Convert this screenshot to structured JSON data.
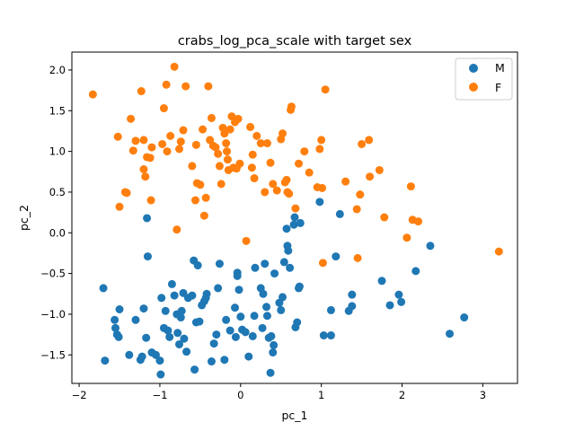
{
  "chart_data": {
    "type": "scatter",
    "title": "crabs_log_pca_scale with target sex",
    "xlabel": "pc_1",
    "ylabel": "pc_2",
    "xlim": [
      -2.09,
      3.43
    ],
    "ylim": [
      -1.85,
      2.22
    ],
    "xticks": [
      -2,
      -1,
      0,
      1,
      2,
      3
    ],
    "yticks": [
      -1.5,
      -1.0,
      -0.5,
      0.0,
      0.5,
      1.0,
      1.5,
      2.0
    ],
    "xtick_labels": [
      "−2",
      "−1",
      "0",
      "1",
      "2",
      "3"
    ],
    "ytick_labels": [
      "−1.5",
      "−1.0",
      "−0.5",
      "0.0",
      "0.5",
      "1.0",
      "1.5",
      "2.0"
    ],
    "grid": false,
    "legend": "upper right",
    "colors": {
      "M": "#1f77b4",
      "F": "#ff7f0e"
    },
    "series": [
      {
        "name": "M",
        "points": [
          [
            -1.7,
            -0.68
          ],
          [
            -1.68,
            -1.57
          ],
          [
            -1.56,
            -1.07
          ],
          [
            -1.55,
            -1.17
          ],
          [
            -1.53,
            -1.25
          ],
          [
            -1.51,
            -1.28
          ],
          [
            -1.5,
            -0.94
          ],
          [
            -1.38,
            -1.5
          ],
          [
            -1.3,
            -1.07
          ],
          [
            -1.24,
            -1.56
          ],
          [
            -1.22,
            -1.52
          ],
          [
            -1.2,
            -0.93
          ],
          [
            -1.17,
            -1.29
          ],
          [
            -1.16,
            0.18
          ],
          [
            -1.15,
            -0.29
          ],
          [
            -1.1,
            -1.47
          ],
          [
            -1.05,
            -1.5
          ],
          [
            -1.0,
            -1.57
          ],
          [
            -0.99,
            -1.74
          ],
          [
            -0.98,
            -0.8
          ],
          [
            -0.95,
            -1.17
          ],
          [
            -0.93,
            -0.96
          ],
          [
            -0.9,
            -1.2
          ],
          [
            -0.88,
            -1.28
          ],
          [
            -0.85,
            -0.63
          ],
          [
            -0.82,
            -0.77
          ],
          [
            -0.79,
            -1.0
          ],
          [
            -0.78,
            -1.23
          ],
          [
            -0.76,
            -1.37
          ],
          [
            -0.74,
            -1.04
          ],
          [
            -0.73,
            -0.96
          ],
          [
            -0.71,
            -0.74
          ],
          [
            -0.7,
            -1.3
          ],
          [
            -0.67,
            -1.46
          ],
          [
            -0.65,
            -0.8
          ],
          [
            -0.6,
            -0.77
          ],
          [
            -0.58,
            -0.34
          ],
          [
            -0.57,
            -1.68
          ],
          [
            -0.55,
            -1.1
          ],
          [
            -0.53,
            -0.4
          ],
          [
            -0.51,
            -1.09
          ],
          [
            -0.48,
            -0.89
          ],
          [
            -0.45,
            -0.84
          ],
          [
            -0.43,
            -0.8
          ],
          [
            -0.42,
            -0.75
          ],
          [
            -0.36,
            -1.58
          ],
          [
            -0.33,
            -1.36
          ],
          [
            -0.3,
            -1.25
          ],
          [
            -0.28,
            -0.68
          ],
          [
            -0.26,
            -0.38
          ],
          [
            -0.2,
            -1.56
          ],
          [
            -0.18,
            -1.07
          ],
          [
            -0.13,
            -1.2
          ],
          [
            -0.07,
            -0.92
          ],
          [
            -0.06,
            -1.28
          ],
          [
            -0.04,
            -0.49
          ],
          [
            -0.04,
            -0.53
          ],
          [
            -0.02,
            -0.7
          ],
          [
            0.0,
            -1.03
          ],
          [
            0.02,
            -1.19
          ],
          [
            0.06,
            -1.22
          ],
          [
            0.1,
            -1.52
          ],
          [
            0.15,
            -1.27
          ],
          [
            0.17,
            -1.02
          ],
          [
            0.18,
            -0.43
          ],
          [
            0.25,
            -0.68
          ],
          [
            0.27,
            -1.17
          ],
          [
            0.28,
            -0.75
          ],
          [
            0.3,
            -0.38
          ],
          [
            0.32,
            -0.91
          ],
          [
            0.33,
            -1.02
          ],
          [
            0.35,
            -1.29
          ],
          [
            0.37,
            -1.72
          ],
          [
            0.38,
            -1.27
          ],
          [
            0.4,
            -1.47
          ],
          [
            0.41,
            -1.38
          ],
          [
            0.42,
            -0.5
          ],
          [
            0.48,
            -0.86
          ],
          [
            0.5,
            -0.95
          ],
          [
            0.52,
            -0.79
          ],
          [
            0.54,
            -0.36
          ],
          [
            0.57,
            0.05
          ],
          [
            0.58,
            -0.16
          ],
          [
            0.59,
            -0.22
          ],
          [
            0.61,
            -0.43
          ],
          [
            0.66,
            0.1
          ],
          [
            0.67,
            0.19
          ],
          [
            0.68,
            -1.16
          ],
          [
            0.7,
            -1.1
          ],
          [
            0.72,
            -0.68
          ],
          [
            0.73,
            -0.66
          ],
          [
            0.74,
            0.12
          ],
          [
            0.98,
            0.38
          ],
          [
            1.03,
            -1.26
          ],
          [
            1.12,
            -0.95
          ],
          [
            1.12,
            -1.26
          ],
          [
            1.18,
            -0.29
          ],
          [
            1.23,
            0.23
          ],
          [
            1.34,
            -0.96
          ],
          [
            1.38,
            -0.76
          ],
          [
            1.38,
            -0.9
          ],
          [
            1.75,
            -0.59
          ],
          [
            1.85,
            -0.89
          ],
          [
            1.96,
            -0.76
          ],
          [
            1.99,
            -0.85
          ],
          [
            2.17,
            -0.47
          ],
          [
            2.35,
            -0.16
          ],
          [
            2.59,
            -1.24
          ],
          [
            2.77,
            -1.04
          ]
        ]
      },
      {
        "name": "F",
        "points": [
          [
            -1.83,
            1.7
          ],
          [
            -1.52,
            1.18
          ],
          [
            -1.5,
            0.32
          ],
          [
            -1.43,
            0.5
          ],
          [
            -1.41,
            0.49
          ],
          [
            -1.36,
            1.4
          ],
          [
            -1.33,
            1.01
          ],
          [
            -1.3,
            1.13
          ],
          [
            -1.23,
            1.74
          ],
          [
            -1.2,
            1.14
          ],
          [
            -1.2,
            0.78
          ],
          [
            -1.18,
            0.69
          ],
          [
            -1.16,
            0.93
          ],
          [
            -1.12,
            0.92
          ],
          [
            -1.11,
            0.4
          ],
          [
            -1.1,
            1.05
          ],
          [
            -0.97,
            1.09
          ],
          [
            -0.95,
            1.53
          ],
          [
            -0.92,
            1.82
          ],
          [
            -0.91,
            1.0
          ],
          [
            -0.87,
            1.19
          ],
          [
            -0.82,
            2.04
          ],
          [
            -0.79,
            0.04
          ],
          [
            -0.76,
            1.03
          ],
          [
            -0.74,
            1.12
          ],
          [
            -0.71,
            1.26
          ],
          [
            -0.68,
            1.8
          ],
          [
            -0.6,
            0.82
          ],
          [
            -0.56,
            0.4
          ],
          [
            -0.55,
            1.08
          ],
          [
            -0.54,
            0.61
          ],
          [
            -0.5,
            0.59
          ],
          [
            -0.47,
            1.27
          ],
          [
            -0.45,
            0.21
          ],
          [
            -0.43,
            0.43
          ],
          [
            -0.4,
            1.8
          ],
          [
            -0.38,
            1.14
          ],
          [
            -0.36,
            1.41
          ],
          [
            -0.34,
            1.07
          ],
          [
            -0.31,
            1.05
          ],
          [
            -0.28,
            0.97
          ],
          [
            -0.26,
            0.82
          ],
          [
            -0.24,
            0.6
          ],
          [
            -0.22,
            1.29
          ],
          [
            -0.2,
            1.22
          ],
          [
            -0.18,
            1.1
          ],
          [
            -0.17,
            1.0
          ],
          [
            -0.16,
            0.9
          ],
          [
            -0.15,
            0.77
          ],
          [
            -0.13,
            1.27
          ],
          [
            -0.11,
            1.43
          ],
          [
            -0.09,
            0.8
          ],
          [
            -0.07,
            1.36
          ],
          [
            -0.05,
            0.79
          ],
          [
            -0.03,
            1.4
          ],
          [
            -0.01,
            0.85
          ],
          [
            0.07,
            -0.1
          ],
          [
            0.12,
            1.3
          ],
          [
            0.14,
            0.8
          ],
          [
            0.15,
            0.96
          ],
          [
            0.17,
            0.67
          ],
          [
            0.2,
            1.19
          ],
          [
            0.25,
            1.1
          ],
          [
            0.3,
            0.5
          ],
          [
            0.33,
            1.1
          ],
          [
            0.37,
            0.86
          ],
          [
            0.4,
            0.6
          ],
          [
            0.45,
            0.52
          ],
          [
            0.5,
            1.15
          ],
          [
            0.52,
            1.22
          ],
          [
            0.55,
            0.62
          ],
          [
            0.57,
            0.65
          ],
          [
            0.58,
            0.5
          ],
          [
            0.6,
            0.48
          ],
          [
            0.62,
            1.51
          ],
          [
            0.63,
            1.55
          ],
          [
            0.68,
            0.3
          ],
          [
            0.72,
            0.85
          ],
          [
            0.79,
            1.0
          ],
          [
            0.85,
            0.74
          ],
          [
            0.95,
            0.56
          ],
          [
            0.98,
            1.03
          ],
          [
            1.0,
            1.14
          ],
          [
            1.01,
            0.55
          ],
          [
            1.02,
            -0.37
          ],
          [
            1.05,
            1.76
          ],
          [
            1.3,
            0.63
          ],
          [
            1.44,
            0.29
          ],
          [
            1.45,
            -0.31
          ],
          [
            1.48,
            0.47
          ],
          [
            1.5,
            1.09
          ],
          [
            1.59,
            1.14
          ],
          [
            1.6,
            0.69
          ],
          [
            1.72,
            0.77
          ],
          [
            1.78,
            0.19
          ],
          [
            2.06,
            -0.06
          ],
          [
            2.11,
            0.57
          ],
          [
            2.13,
            0.16
          ],
          [
            2.2,
            0.14
          ],
          [
            3.2,
            -0.23
          ]
        ]
      }
    ]
  }
}
